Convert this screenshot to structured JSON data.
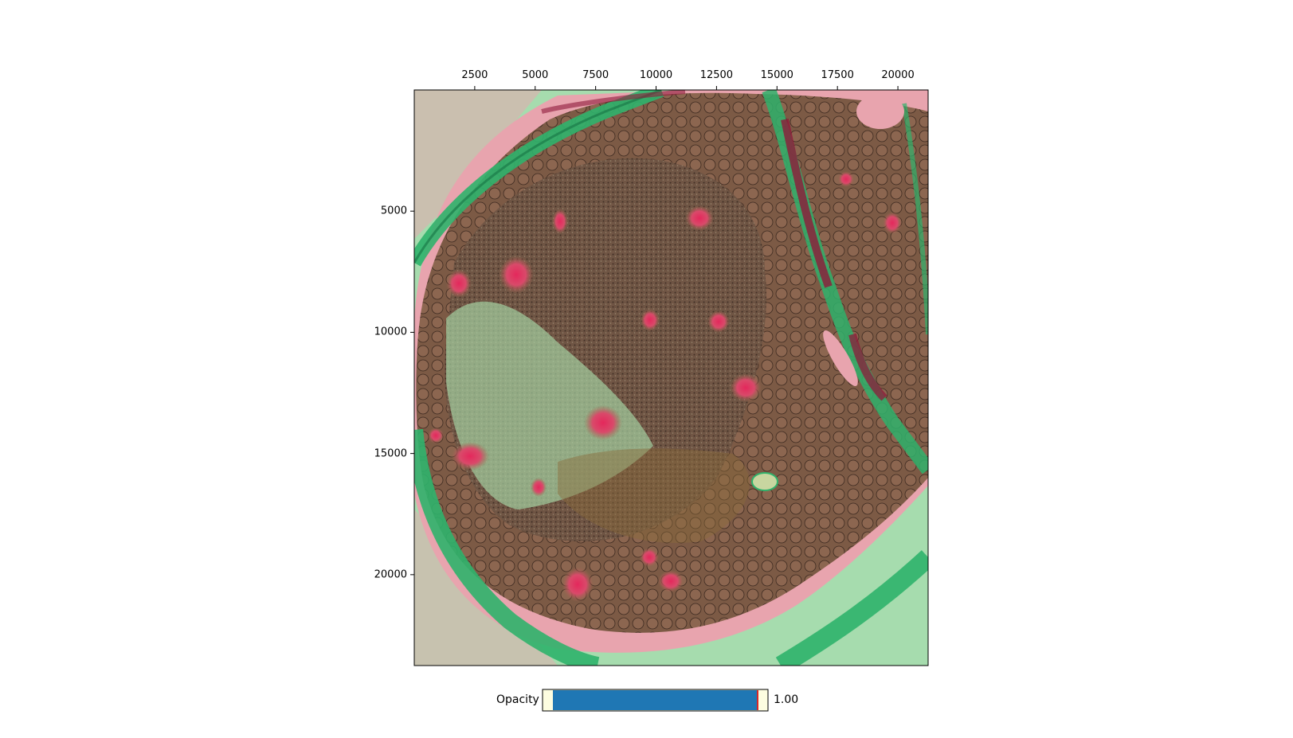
{
  "image_axes": {
    "x_ticks": [
      "2500",
      "5000",
      "7500",
      "10000",
      "12500",
      "15000",
      "17500",
      "20000"
    ],
    "y_ticks": [
      "5000",
      "10000",
      "15000",
      "20000"
    ],
    "x_range": [
      0,
      21250
    ],
    "y_range": [
      23750,
      0
    ]
  },
  "overlay_colors": {
    "tissue": "#7a5a44",
    "stroma_green": "#9fd8a4",
    "band_green": "#2fb26b",
    "pink": "#e59aa6",
    "red": "#d8305e",
    "dark_red": "#8e1a3a"
  },
  "opacity_slider": {
    "label": "Opacity",
    "value": 1.0,
    "value_text": "1.00",
    "bar_color": "#1f77b4",
    "track_color": "#fdfde0",
    "handle_color": "#d62728"
  }
}
